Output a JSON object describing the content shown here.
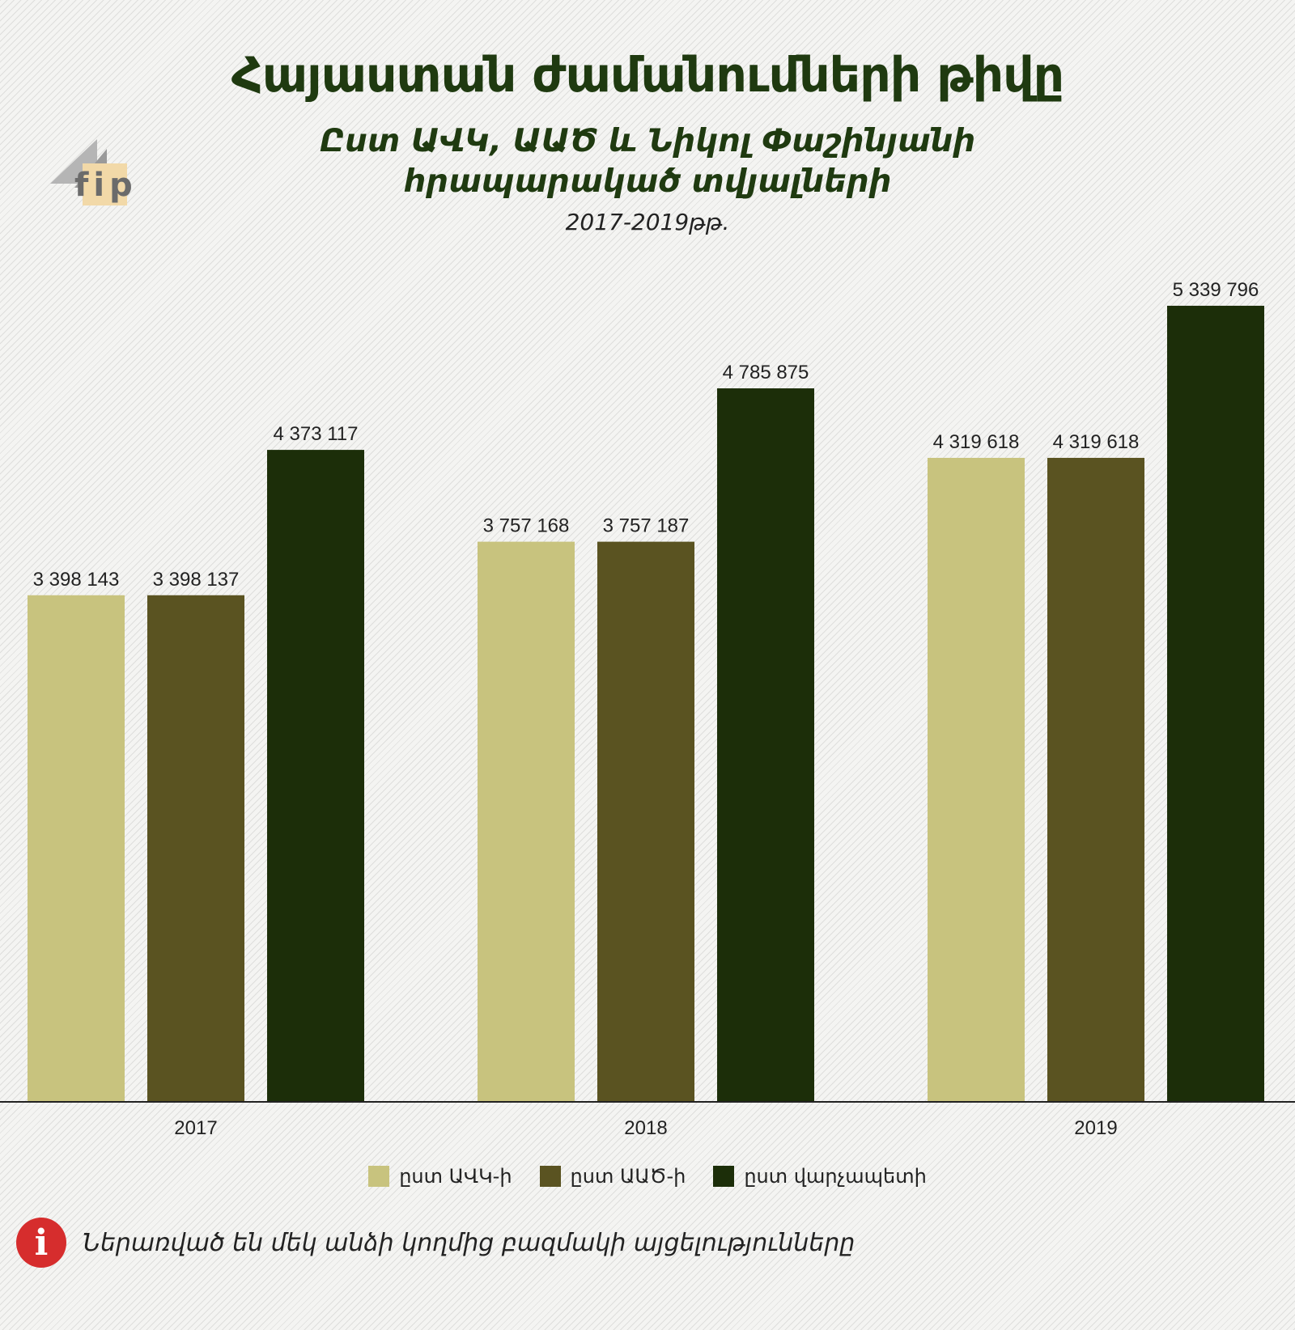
{
  "header": {
    "title": "Հայաստան ժամանումների թիվը",
    "subtitle_line1": "Ըստ ԱՎԿ, ԱԱԾ և Նիկոլ Փաշինյանի",
    "subtitle_line2": "հրապարակած տվյալների",
    "years": "2017-2019թթ.",
    "logo_text": "fip"
  },
  "colors": {
    "avk": "#c8c37e",
    "aas": "#5a5321",
    "pm": "#1c2e09",
    "title": "#1f3a10",
    "info": "#d62d2d"
  },
  "chart_data": {
    "type": "bar",
    "categories": [
      "2017",
      "2018",
      "2019"
    ],
    "series": [
      {
        "name": "ըստ ԱՎԿ-ի",
        "values": [
          3398143,
          3757168,
          4319618
        ],
        "labels": [
          "3 398 143",
          "3 757 168",
          "4 319 618"
        ]
      },
      {
        "name": "ըստ ԱԱԾ-ի",
        "values": [
          3398137,
          3757187,
          4319618
        ],
        "labels": [
          "3 398 137",
          "3 757 187",
          "4 319 618"
        ]
      },
      {
        "name": "ըստ վարչապետի",
        "values": [
          4373117,
          4785875,
          5339796
        ],
        "labels": [
          "4 373 117",
          "4 785 875",
          "5 339 796"
        ]
      }
    ],
    "ylim": [
      0,
      5600000
    ],
    "grid": false,
    "legend_position": "bottom"
  },
  "legend": [
    {
      "label": "ըստ ԱՎԿ-ի",
      "icon": "legend-swatch-avk"
    },
    {
      "label": "ըստ ԱԱԾ-ի",
      "icon": "legend-swatch-aas"
    },
    {
      "label": "ըստ վարչապետի",
      "icon": "legend-swatch-pm"
    }
  ],
  "note": {
    "icon": "info-icon",
    "icon_glyph": "i",
    "text": "Ներառված են մեկ անձի կողմից բազմակի այցելությունները"
  }
}
